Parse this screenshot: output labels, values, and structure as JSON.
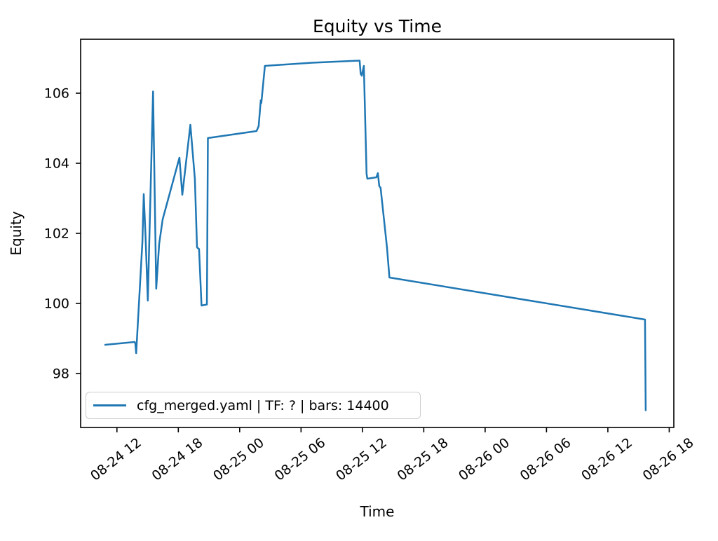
{
  "figure": {
    "background": "#ffffff",
    "text_color": "#000000",
    "spine_color": "#000000"
  },
  "legend": {
    "label": "cfg_merged.yaml | TF: ? | bars: 14400",
    "position": "lower left",
    "border_color": "#cccccc"
  },
  "chart_data": {
    "type": "line",
    "title": "Equity vs Time",
    "xlabel": "Time",
    "ylabel": "Equity",
    "grid": false,
    "line_color": "#1f77b4",
    "x_unit": "hours since 08-24 00:00",
    "xlim": [
      8.45,
      66.45
    ],
    "ylim": [
      96.46,
      107.54
    ],
    "x_ticks": [
      12,
      18,
      24,
      30,
      36,
      42,
      48,
      54,
      60,
      66
    ],
    "x_tick_labels": [
      "08-24 12",
      "08-24 18",
      "08-25 00",
      "08-25 06",
      "08-25 12",
      "08-25 18",
      "08-26 00",
      "08-26 06",
      "08-26 12",
      "08-26 18"
    ],
    "y_ticks": [
      98,
      100,
      102,
      104,
      106
    ],
    "y_tick_labels": [
      "98",
      "100",
      "102",
      "104",
      "106"
    ],
    "series": [
      {
        "name": "cfg_merged.yaml | TF: ? | bars: 14400",
        "points": [
          [
            10.85,
            98.82
          ],
          [
            13.73,
            98.9
          ],
          [
            13.8,
            98.86
          ],
          [
            13.88,
            98.58
          ],
          [
            14.49,
            101.76
          ],
          [
            14.62,
            103.12
          ],
          [
            14.8,
            101.9
          ],
          [
            15.02,
            100.08
          ],
          [
            15.53,
            106.05
          ],
          [
            15.84,
            100.42
          ],
          [
            16.13,
            101.7
          ],
          [
            16.47,
            102.4
          ],
          [
            18.11,
            104.16
          ],
          [
            18.39,
            103.1
          ],
          [
            19.18,
            105.1
          ],
          [
            19.62,
            103.56
          ],
          [
            19.83,
            101.6
          ],
          [
            20.03,
            101.55
          ],
          [
            20.27,
            99.94
          ],
          [
            20.8,
            99.97
          ],
          [
            20.89,
            104.72
          ],
          [
            25.65,
            104.92
          ],
          [
            25.86,
            105.06
          ],
          [
            26.06,
            105.8
          ],
          [
            26.12,
            105.72
          ],
          [
            26.47,
            106.78
          ],
          [
            31.1,
            106.87
          ],
          [
            35.73,
            106.93
          ],
          [
            35.83,
            106.55
          ],
          [
            35.94,
            106.5
          ],
          [
            36.14,
            106.78
          ],
          [
            36.41,
            103.7
          ],
          [
            36.48,
            103.56
          ],
          [
            37.37,
            103.6
          ],
          [
            37.51,
            103.72
          ],
          [
            37.65,
            103.35
          ],
          [
            37.78,
            103.3
          ],
          [
            38.4,
            101.6
          ],
          [
            38.64,
            100.74
          ],
          [
            63.63,
            99.54
          ],
          [
            63.7,
            96.95
          ]
        ]
      }
    ]
  }
}
